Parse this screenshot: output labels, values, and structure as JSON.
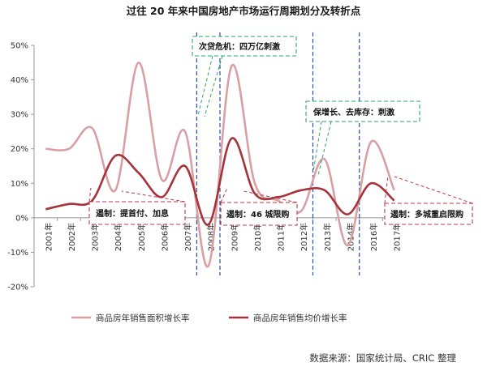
{
  "title": "过往 20 年来中国房地产市场运行周期划分及转折点",
  "source": "数据来源：国家统计局、CRIC 整理",
  "chart_data": {
    "type": "line",
    "categories": [
      "2001年",
      "2002年",
      "2003年",
      "2004年",
      "2005年",
      "2006年",
      "2007年",
      "2008年",
      "2009年",
      "2010年",
      "2011年",
      "2012年",
      "2013年",
      "2014年",
      "2016年",
      "2017年"
    ],
    "ylim": [
      -20,
      50
    ],
    "yticks": [
      "50%",
      "40%",
      "30%",
      "20%",
      "10%",
      "0%",
      "-10%",
      "-20%"
    ],
    "ytick_values": [
      50,
      40,
      30,
      20,
      10,
      0,
      -10,
      -20
    ],
    "series": [
      {
        "name": "商品房年销售面积增长率",
        "color": "#d9a0a4",
        "values": [
          20,
          20,
          26,
          8,
          45,
          11,
          25,
          -14,
          44,
          10,
          5,
          2,
          17,
          -8,
          22,
          8
        ]
      },
      {
        "name": "商品房年销售均价增长率",
        "color": "#a8323a",
        "values": [
          2.5,
          4,
          5,
          18,
          13,
          6,
          15,
          -2,
          23,
          7,
          6,
          8,
          8,
          1,
          10,
          5
        ]
      }
    ],
    "vlines_after_index": [
      6,
      7,
      11,
      13
    ],
    "annotations": [
      {
        "text": "次贷危机：四万亿刺激",
        "color": "#2aa861",
        "style": "dashed"
      },
      {
        "text": "保增长、去库存：刺激",
        "color": "#2aa861",
        "style": "dashed"
      },
      {
        "text": "遏制：提首付、加息",
        "color": "#b93a45",
        "style": "dashed"
      },
      {
        "text": "遏制：46 城限购",
        "color": "#b93a45",
        "style": "dashed"
      },
      {
        "text": "遏制：多城重启限购",
        "color": "#b93a45",
        "style": "dashed"
      }
    ],
    "legend_position": "bottom"
  }
}
